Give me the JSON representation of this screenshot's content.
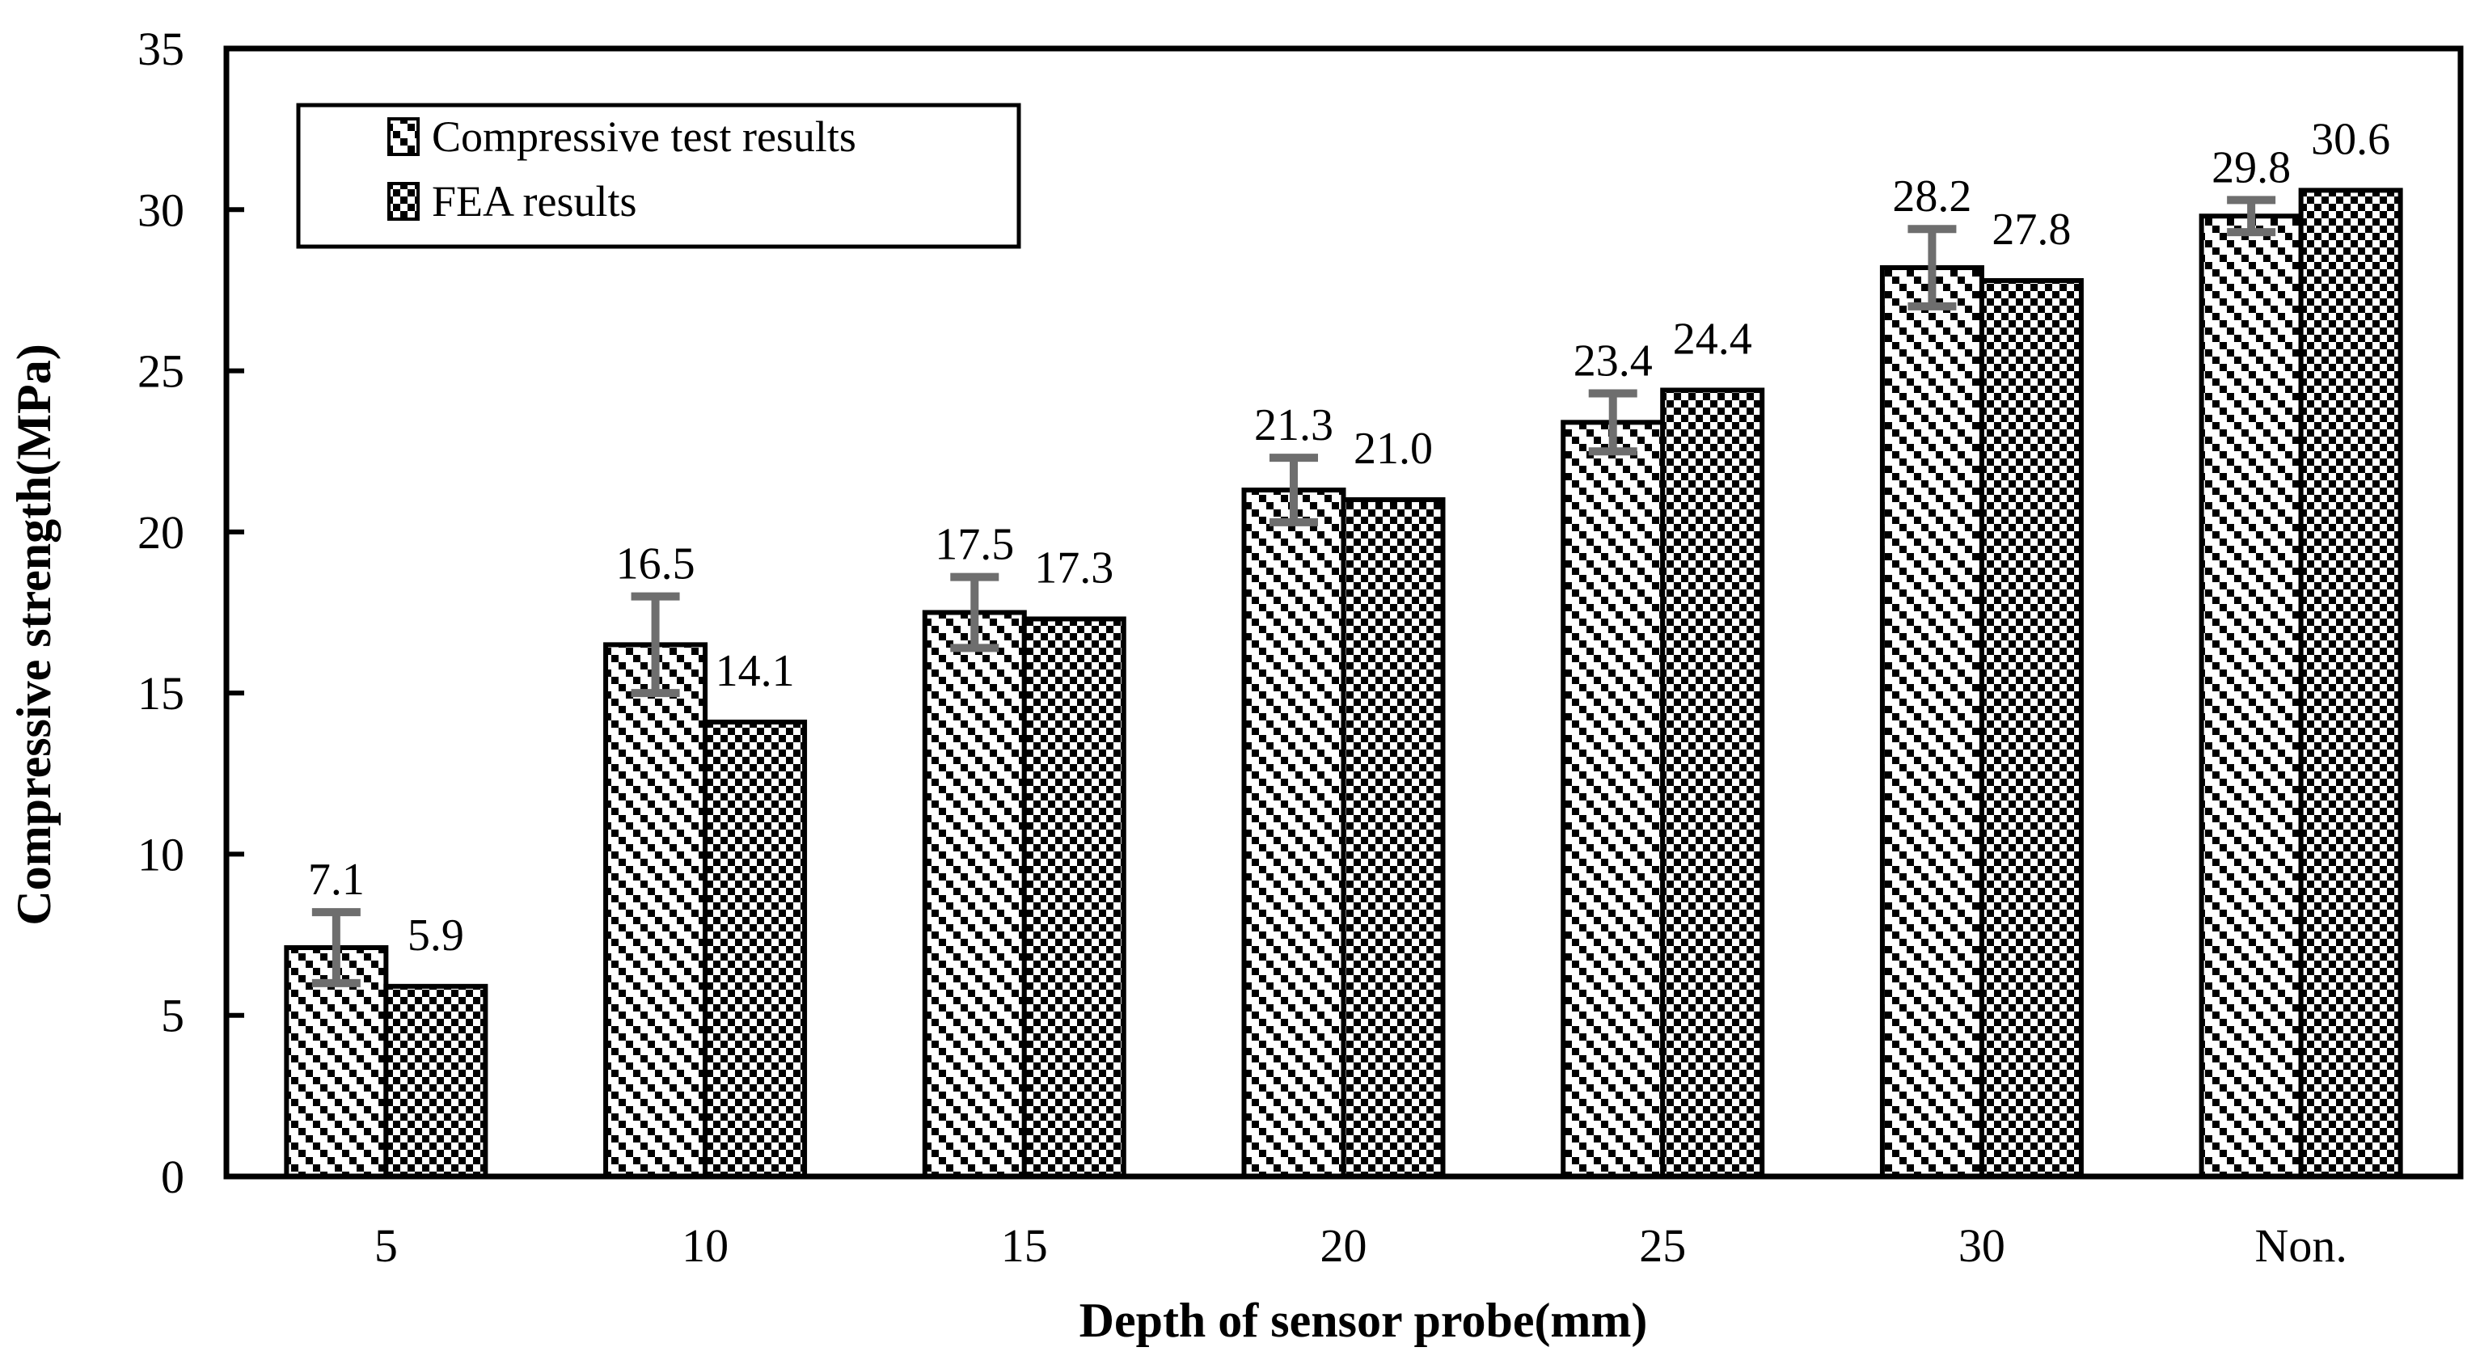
{
  "chart_data": {
    "type": "bar",
    "title": "",
    "xlabel": "Depth of sensor probe(mm)",
    "ylabel": "Compressive strength(MPa)",
    "categories": [
      "5",
      "10",
      "15",
      "20",
      "25",
      "30",
      "Non."
    ],
    "series": [
      {
        "name": "Compressive test results",
        "pattern": "diagonal-hatch",
        "values": [
          7.1,
          16.5,
          17.5,
          21.3,
          23.4,
          28.2,
          29.8
        ],
        "errors": [
          1.1,
          1.5,
          1.1,
          1.0,
          0.9,
          1.2,
          0.5
        ],
        "value_labels": [
          "7.1",
          "16.5",
          "17.5",
          "21.3",
          "23.4",
          "28.2",
          "29.8"
        ]
      },
      {
        "name": "FEA results",
        "pattern": "checkerboard",
        "values": [
          5.9,
          14.1,
          17.3,
          21.0,
          24.4,
          27.8,
          30.6
        ],
        "value_labels": [
          "5.9",
          "14.1",
          "17.3",
          "21.0",
          "24.4",
          "27.8",
          "30.6"
        ]
      }
    ],
    "ylim": [
      0,
      35
    ],
    "yticks": [
      0,
      5,
      10,
      15,
      20,
      25,
      30,
      35
    ],
    "grid": false,
    "legend_position": "top-left",
    "error_bars_on_series": "Compressive test results",
    "colors": {
      "bar_fill": "#ffffff",
      "bar_stroke": "#000000",
      "error_bar": "#6e6e6e",
      "text": "#000000",
      "background": "#ffffff"
    }
  }
}
